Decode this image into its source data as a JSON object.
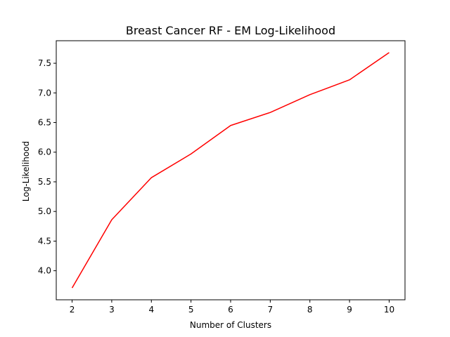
{
  "chart_data": {
    "type": "line",
    "title": "Breast Cancer RF - EM Log-Likelihood",
    "xlabel": "Number of Clusters",
    "ylabel": "Log-Likelihood",
    "x": [
      2,
      3,
      4,
      5,
      6,
      7,
      8,
      9,
      10
    ],
    "series": [
      {
        "values": [
          3.71,
          4.86,
          5.57,
          5.97,
          6.45,
          6.67,
          6.97,
          7.22,
          7.68
        ],
        "color": "#ff0000"
      }
    ],
    "xlim": [
      1.6,
      10.4
    ],
    "ylim": [
      3.51,
      7.88
    ],
    "xticks": [
      2,
      3,
      4,
      5,
      6,
      7,
      8,
      9,
      10
    ],
    "xtick_labels": [
      "2",
      "3",
      "4",
      "5",
      "6",
      "7",
      "8",
      "9",
      "10"
    ],
    "yticks": [
      4.0,
      4.5,
      5.0,
      5.5,
      6.0,
      6.5,
      7.0,
      7.5
    ],
    "ytick_labels": [
      "4.0",
      "4.5",
      "5.0",
      "5.5",
      "6.0",
      "6.5",
      "7.0",
      "7.5"
    ],
    "grid": false,
    "legend": false
  }
}
